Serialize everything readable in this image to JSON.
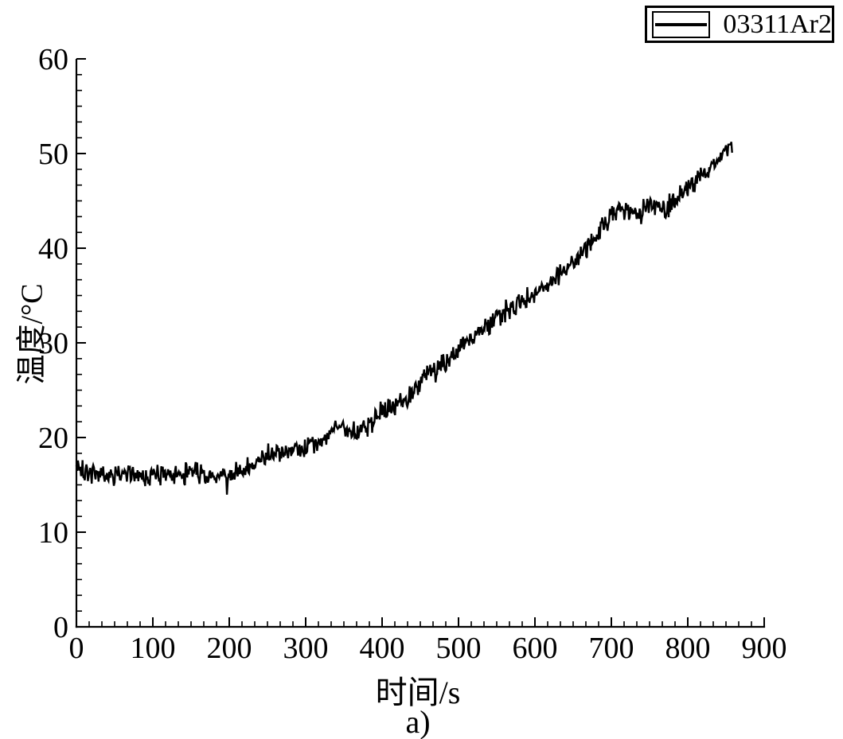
{
  "figure": {
    "caption": "a)"
  },
  "legend": {
    "label": "03311Ar2",
    "line_color": "#000000"
  },
  "chart_data": {
    "type": "line",
    "title": "",
    "xlabel": "时间/s",
    "ylabel": "温度/°C",
    "xlim": [
      0,
      900
    ],
    "ylim": [
      0,
      60
    ],
    "x_major_ticks": [
      0,
      100,
      200,
      300,
      400,
      500,
      600,
      700,
      800,
      900
    ],
    "y_major_ticks": [
      0,
      10,
      20,
      30,
      40,
      50,
      60
    ],
    "x_minor_divisions": 6,
    "y_minor_divisions": 6,
    "grid": false,
    "legend_position": "top-right",
    "axis_color": "#000000",
    "background": "#ffffff",
    "series": [
      {
        "name": "03311Ar2",
        "color": "#000000",
        "sample_step_s": 1,
        "t_end": 858,
        "noise_amplitude": 1.3,
        "seed": 20,
        "trend_t": [
          0,
          15,
          30,
          50,
          70,
          90,
          110,
          130,
          150,
          170,
          190,
          210,
          225,
          240,
          255,
          270,
          285,
          300,
          315,
          330,
          340,
          355,
          370,
          385,
          400,
          415,
          430,
          445,
          460,
          475,
          490,
          505,
          520,
          535,
          550,
          565,
          580,
          595,
          610,
          625,
          640,
          655,
          670,
          685,
          700,
          710,
          720,
          730,
          740,
          750,
          760,
          770,
          780,
          790,
          800,
          810,
          820,
          830,
          840,
          848,
          855,
          858
        ],
        "trend_T": [
          16.9,
          16.2,
          16.3,
          15.9,
          16.2,
          16.0,
          16.2,
          15.9,
          16.3,
          16.2,
          16.0,
          16.2,
          16.8,
          17.6,
          18.3,
          18.5,
          18.6,
          18.9,
          19.4,
          20.6,
          21.2,
          20.9,
          20.7,
          21.4,
          22.9,
          23.5,
          24.0,
          25.0,
          26.8,
          27.6,
          28.2,
          29.9,
          30.6,
          31.7,
          32.8,
          33.5,
          34.3,
          35.0,
          35.9,
          36.8,
          37.8,
          38.9,
          40.3,
          41.9,
          43.4,
          44.3,
          44.0,
          43.7,
          44.1,
          44.6,
          44.3,
          44.0,
          45.0,
          45.7,
          46.3,
          47.0,
          47.7,
          48.5,
          49.4,
          50.2,
          50.9,
          51.2
        ]
      }
    ]
  }
}
